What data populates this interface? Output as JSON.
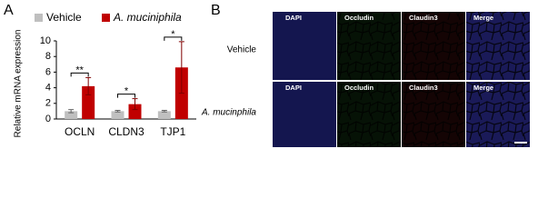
{
  "panel_a_label": "A",
  "chart_data": {
    "type": "bar",
    "ylabel": "Relative mRNA expression",
    "categories": [
      "OCLN",
      "CLDN3",
      "TJP1"
    ],
    "series": [
      {
        "name": "Vehicle",
        "color": "#bfbfbf",
        "values": [
          1.0,
          1.0,
          1.0
        ],
        "errors": [
          0.2,
          0.1,
          0.1
        ]
      },
      {
        "name": "A. muciniphila",
        "color": "#c00000",
        "values": [
          4.2,
          1.9,
          6.6
        ],
        "errors": [
          1.1,
          0.7,
          3.3
        ]
      }
    ],
    "annotations": [
      {
        "text": "**",
        "category": 0
      },
      {
        "text": "*",
        "category": 1
      },
      {
        "text": "*",
        "category": 2
      }
    ],
    "ylim": [
      0,
      10
    ],
    "yticks": [
      0,
      2,
      4,
      6,
      8,
      10
    ],
    "grid": false,
    "legend": "top"
  },
  "panel_b": {
    "label": "B",
    "rows": [
      {
        "label": "Vehicle",
        "channels": [
          "DAPI",
          "Occludin",
          "Claudin3",
          "Merge"
        ]
      },
      {
        "label": "A. mucinphila",
        "channels": [
          "DAPI",
          "Occludin",
          "Claudin3",
          "Merge"
        ]
      }
    ]
  }
}
